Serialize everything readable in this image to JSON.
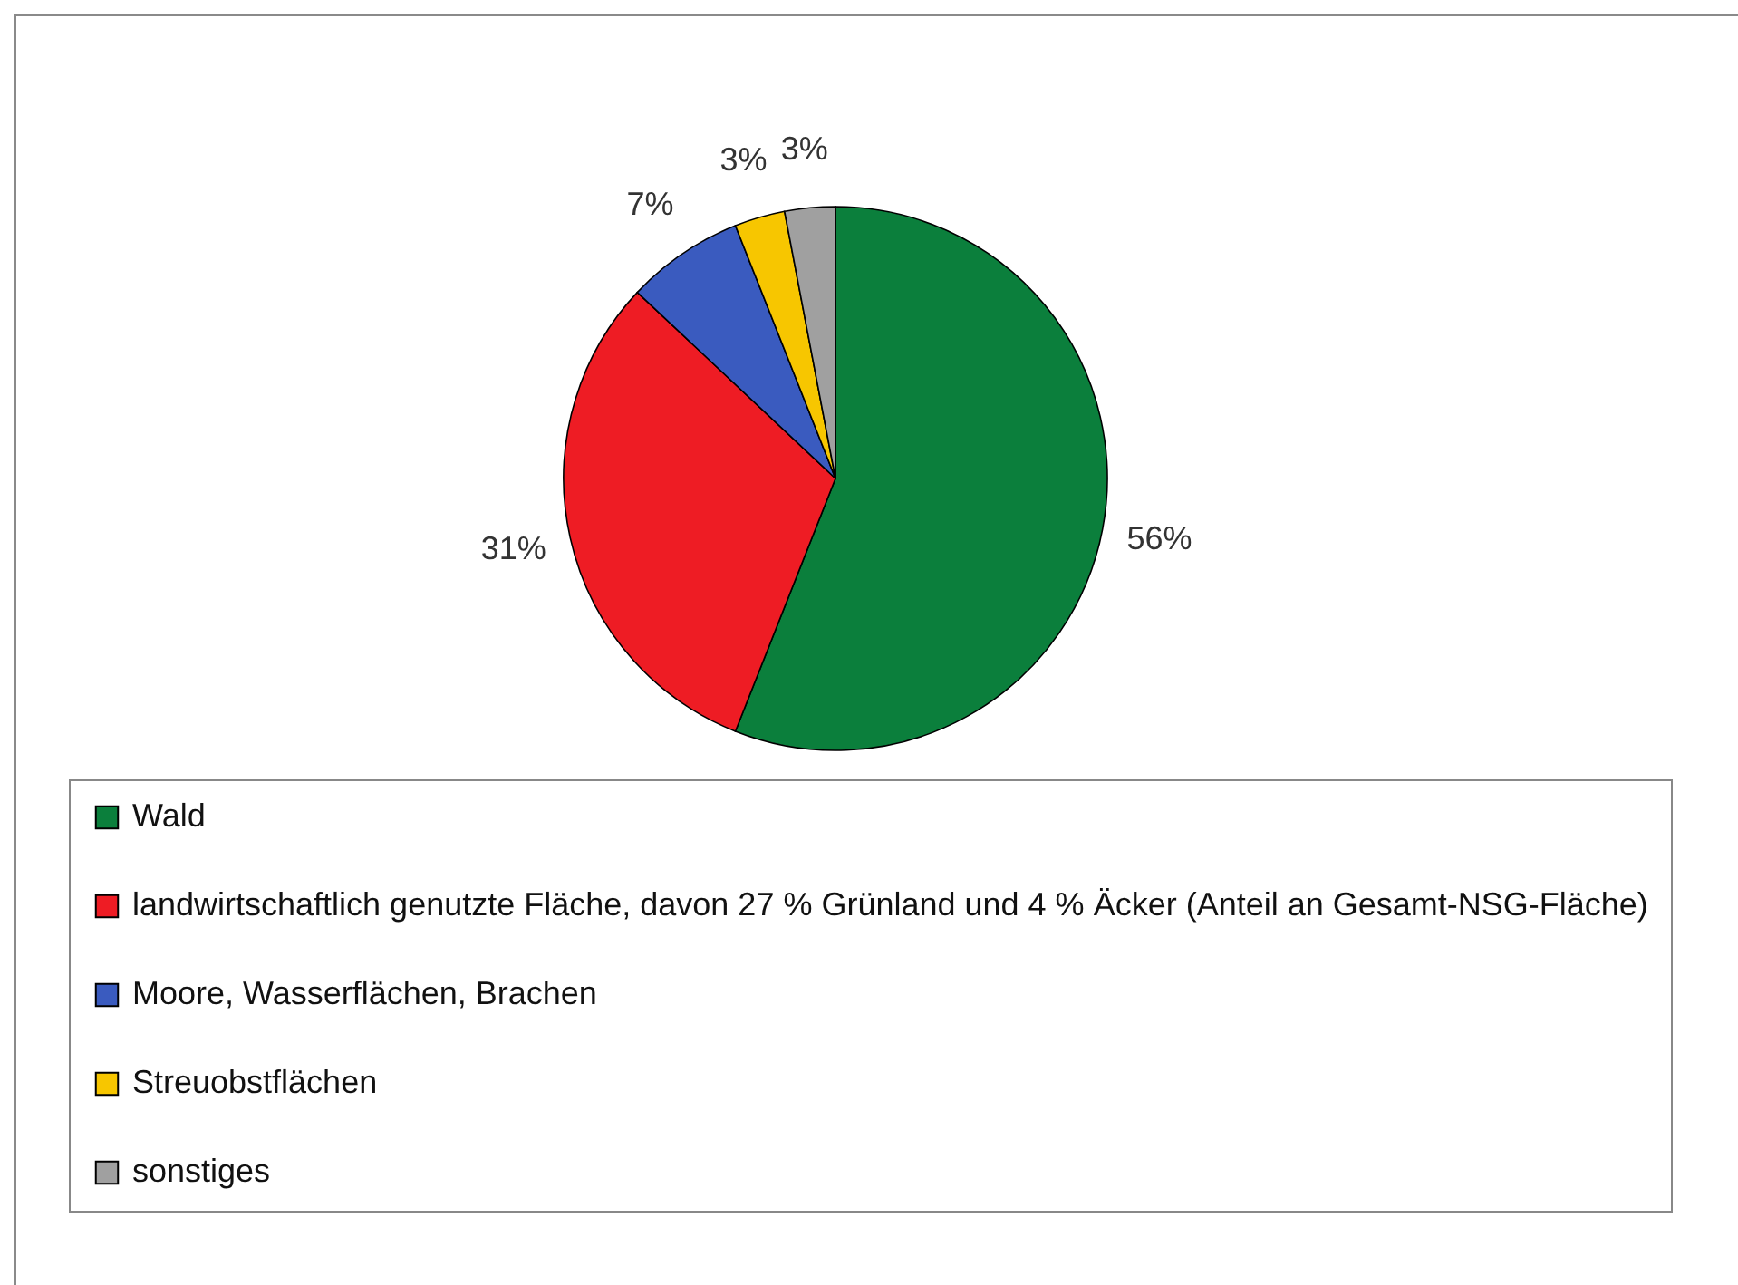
{
  "chart_data": {
    "type": "pie",
    "categories": [
      "Wald",
      "landwirtschaftlich genutzte Fläche, davon 27 % Grünland und 4 % Äcker (Anteil an Gesamt-NSG-Fläche)",
      "Moore, Wasserflächen, Brachen",
      "Streuobstflächen",
      "sonstiges"
    ],
    "values": [
      56,
      31,
      7,
      3,
      3
    ],
    "colors": [
      "#0b7f3c",
      "#ee1c24",
      "#3a5bbf",
      "#f7c600",
      "#a0a0a0"
    ],
    "value_labels": [
      "56%",
      "31%",
      "7%",
      "3%",
      "3%"
    ],
    "legend": "bottom"
  }
}
